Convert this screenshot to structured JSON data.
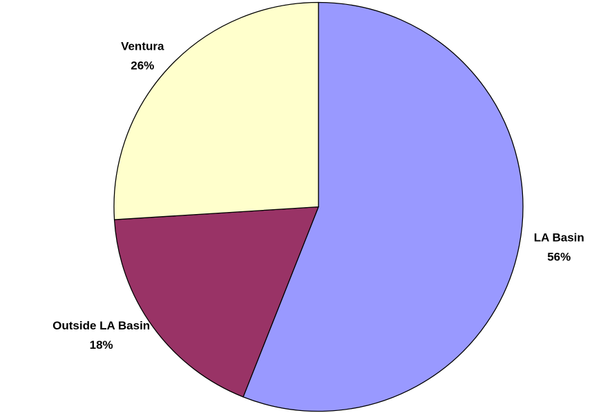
{
  "chart_data": {
    "type": "pie",
    "categories": [
      "LA Basin",
      "Outside LA Basin",
      "Ventura"
    ],
    "values": [
      56,
      18,
      26
    ],
    "value_labels": [
      "56%",
      "18%",
      "26%"
    ],
    "colors": [
      "#9999ff",
      "#993366",
      "#ffffcc"
    ]
  }
}
